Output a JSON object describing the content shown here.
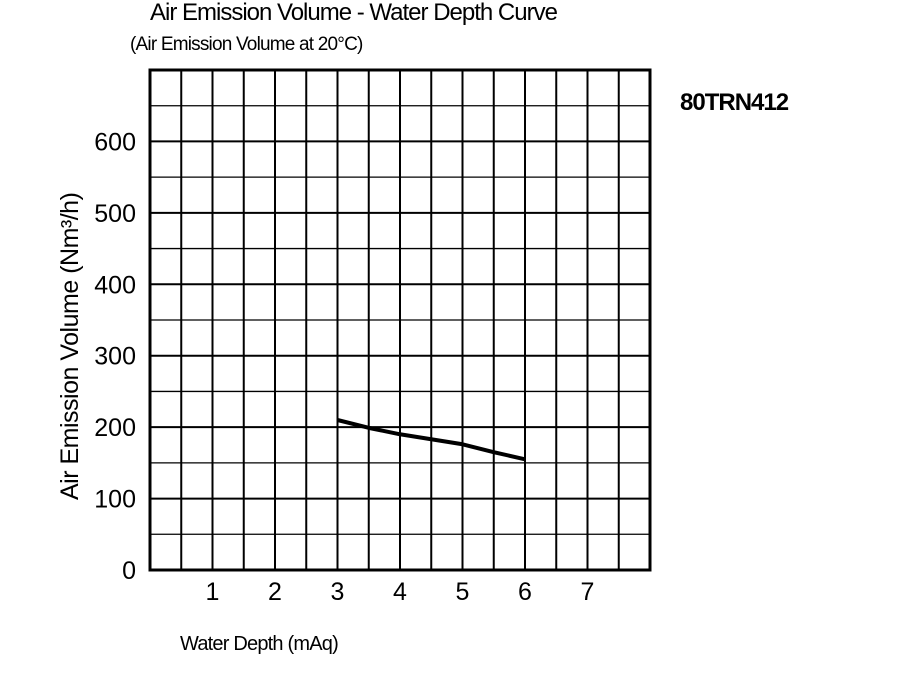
{
  "chart_data": {
    "type": "line",
    "title": "Air Emission Volume - Water Depth Curve",
    "subtitle": "(Air Emission Volume at 20°C)",
    "model": "80TRN412",
    "xlabel": "Water Depth (mAq)",
    "ylabel": "Air Emission Volume (Nm³/h)",
    "xlim": [
      0,
      8
    ],
    "ylim": [
      0,
      700
    ],
    "x_ticks": [
      "1",
      "2",
      "3",
      "4",
      "5",
      "6",
      "7"
    ],
    "x_tick_values": [
      1,
      2,
      3,
      4,
      5,
      6,
      7
    ],
    "y_ticks": [
      "0",
      "100",
      "200",
      "300",
      "400",
      "500",
      "600"
    ],
    "y_tick_values": [
      0,
      100,
      200,
      300,
      400,
      500,
      600
    ],
    "grid": true,
    "grid_step_x": 0.5,
    "grid_step_y": 50,
    "series": [
      {
        "x": [
          3,
          3.5,
          4,
          4.5,
          5,
          5.5,
          6
        ],
        "y": [
          210,
          199,
          190,
          183,
          176,
          165,
          155
        ],
        "color": "#000000"
      }
    ]
  }
}
